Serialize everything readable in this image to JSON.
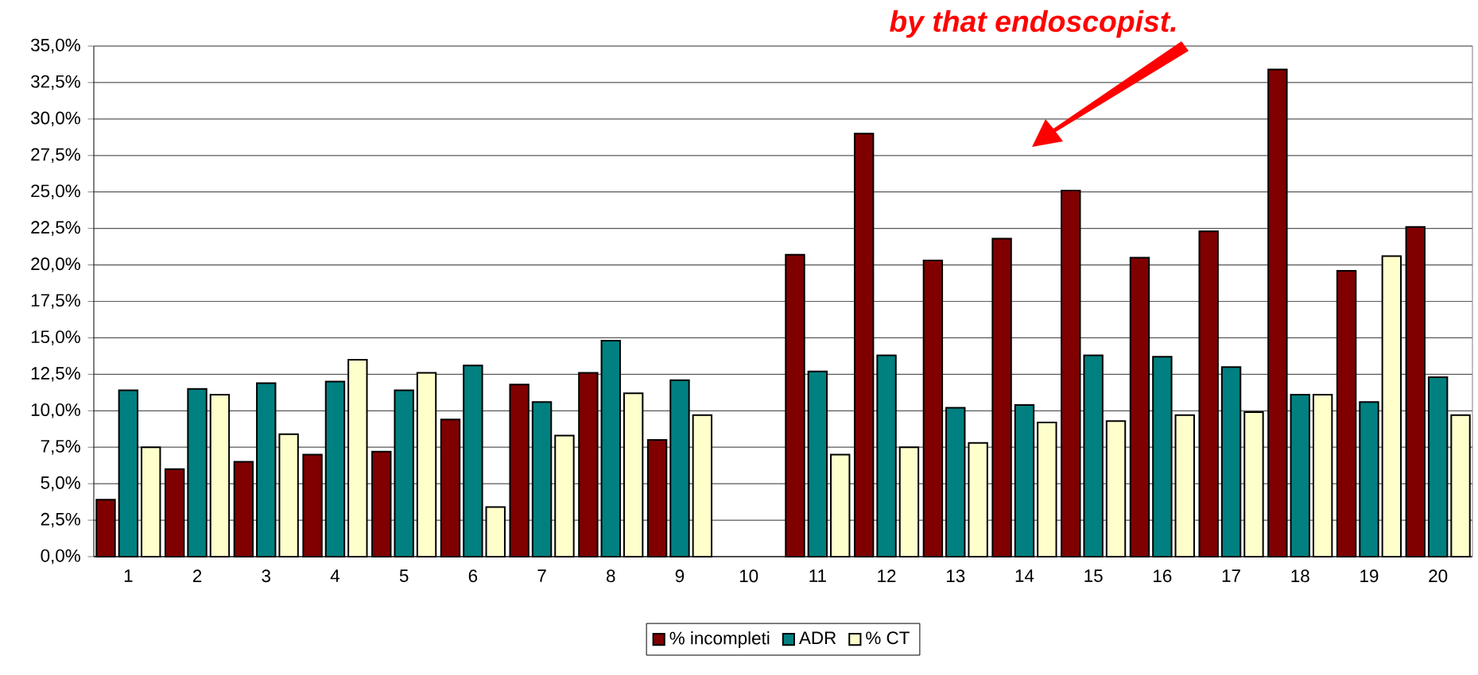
{
  "chart_data": {
    "type": "bar",
    "annotations": [
      "by that endoscopist."
    ],
    "categories": [
      "1",
      "2",
      "3",
      "4",
      "5",
      "6",
      "7",
      "8",
      "9",
      "10",
      "11",
      "12",
      "13",
      "14",
      "15",
      "16",
      "17",
      "18",
      "19",
      "20"
    ],
    "series": [
      {
        "name": "% incompleti",
        "color": "#800000",
        "values": [
          3.9,
          6.0,
          6.5,
          7.0,
          7.2,
          9.4,
          11.8,
          12.6,
          8.0,
          null,
          20.7,
          29.0,
          20.3,
          21.8,
          25.1,
          20.5,
          22.3,
          33.4,
          19.6,
          22.6
        ]
      },
      {
        "name": "ADR",
        "color": "#008080",
        "values": [
          11.4,
          11.5,
          11.9,
          12.0,
          11.4,
          13.1,
          10.6,
          14.8,
          12.1,
          null,
          12.7,
          13.8,
          10.2,
          10.4,
          13.8,
          13.7,
          13.0,
          11.1,
          10.6,
          12.3
        ]
      },
      {
        "name": "% CT",
        "color": "#ffffcc",
        "values": [
          7.5,
          11.1,
          8.4,
          13.5,
          12.6,
          3.4,
          8.3,
          11.2,
          9.7,
          null,
          7.0,
          7.5,
          7.8,
          9.2,
          9.3,
          9.7,
          9.9,
          11.1,
          20.6,
          9.7
        ]
      }
    ],
    "ylim": [
      0,
      35
    ],
    "yticks": [
      {
        "value": 0,
        "label": "0,0%"
      },
      {
        "value": 2.5,
        "label": "2,5%"
      },
      {
        "value": 5,
        "label": "5,0%"
      },
      {
        "value": 7.5,
        "label": "7,5%"
      },
      {
        "value": 10,
        "label": "10,0%"
      },
      {
        "value": 12.5,
        "label": "12,5%"
      },
      {
        "value": 15,
        "label": "15,0%"
      },
      {
        "value": 17.5,
        "label": "17,5%"
      },
      {
        "value": 20,
        "label": "20,0%"
      },
      {
        "value": 22.5,
        "label": "22,5%"
      },
      {
        "value": 25,
        "label": "25,0%"
      },
      {
        "value": 27.5,
        "label": "27,5%"
      },
      {
        "value": 30,
        "label": "30,0%"
      },
      {
        "value": 32.5,
        "label": "32,5%"
      },
      {
        "value": 35,
        "label": "35,0%"
      }
    ],
    "grid": "y",
    "legend": "bottom"
  }
}
